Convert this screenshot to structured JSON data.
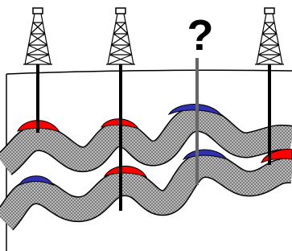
{
  "question_mark": "?"
}
